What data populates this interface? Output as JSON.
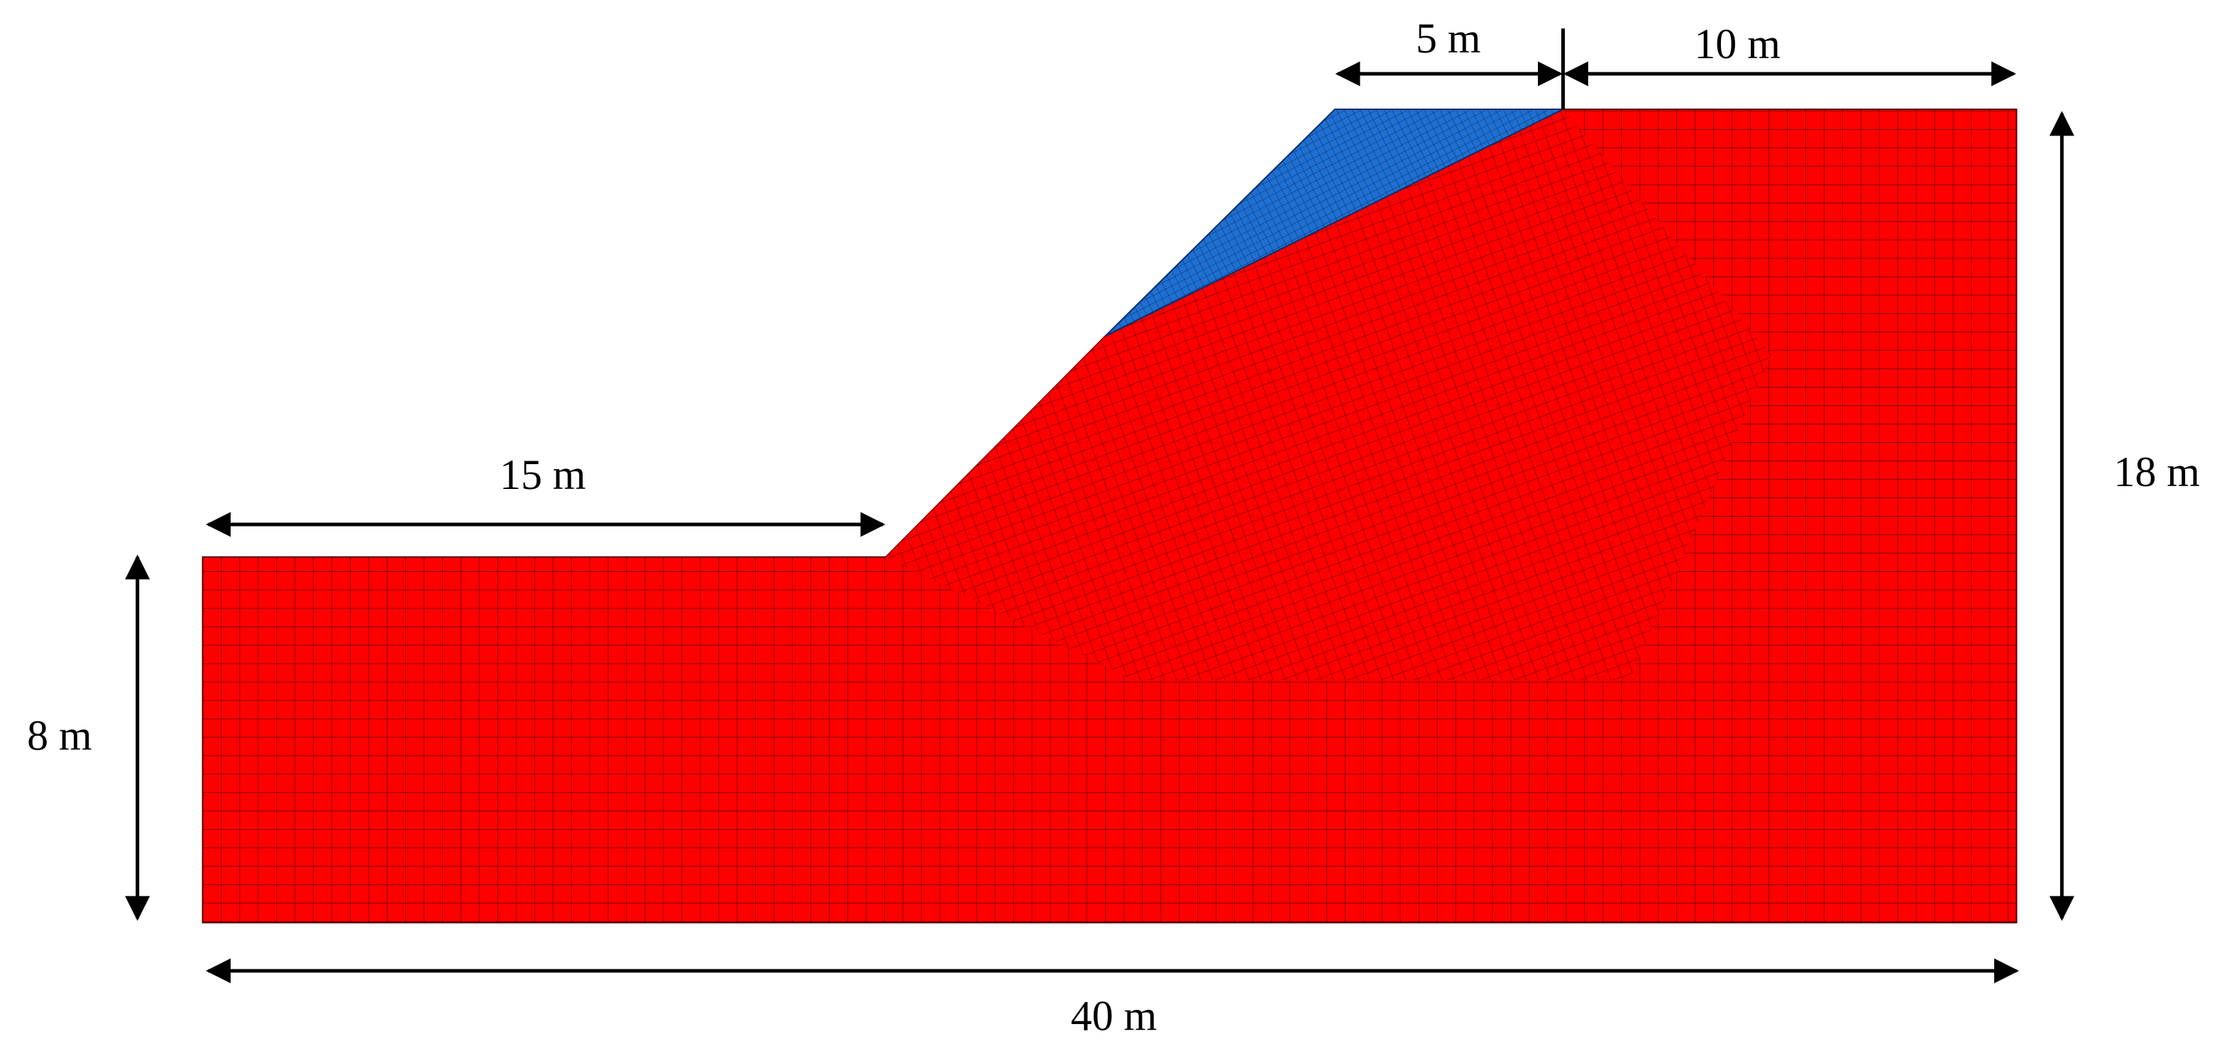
{
  "dimensions": {
    "crest_width": "5 m",
    "right_top_width": "10 m",
    "toe_width": "15 m",
    "total_height": "18 m",
    "toe_height": "8 m",
    "total_width": "40 m"
  }
}
